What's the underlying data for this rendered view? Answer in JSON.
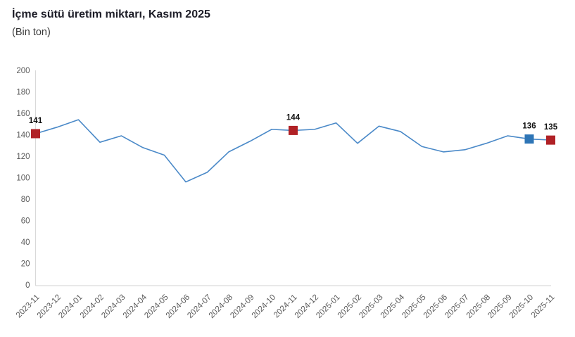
{
  "header": {
    "title": "İçme sütü üretim miktarı, Kasım 2025",
    "subtitle": "(Bin ton)"
  },
  "chart_data": {
    "type": "line",
    "title": "İçme sütü üretim miktarı, Kasım 2025",
    "unit_label": "(Bin ton)",
    "x": [
      "2023-11",
      "2023-12",
      "2024-01",
      "2024-02",
      "2024-03",
      "2024-04",
      "2024-05",
      "2024-06",
      "2024-07",
      "2024-08",
      "2024-09",
      "2024-10",
      "2024-11",
      "2024-12",
      "2025-01",
      "2025-02",
      "2025-03",
      "2025-04",
      "2025-05",
      "2025-06",
      "2025-07",
      "2025-08",
      "2025-09",
      "2025-10",
      "2025-11"
    ],
    "values": [
      141,
      147,
      154,
      133,
      139,
      128,
      121,
      96,
      105,
      124,
      134,
      145,
      144,
      145,
      151,
      132,
      148,
      143,
      129,
      124,
      126,
      132,
      139,
      136,
      135
    ],
    "ylim": [
      0,
      200
    ],
    "ytick_step": 20,
    "grid": false,
    "legend": null,
    "line_color": "#4a89c8",
    "axis_line_color": "#d9d9d9",
    "tick_label_color": "#595959",
    "data_label_color": "#111111",
    "highlighted_points": [
      {
        "x": "2023-11",
        "value": 141,
        "label": "141",
        "color": "#b02126"
      },
      {
        "x": "2024-11",
        "value": 144,
        "label": "144",
        "color": "#b02126"
      },
      {
        "x": "2025-10",
        "value": 136,
        "label": "136",
        "color": "#2e75b6"
      },
      {
        "x": "2025-11",
        "value": 135,
        "label": "135",
        "color": "#b02126"
      }
    ]
  }
}
